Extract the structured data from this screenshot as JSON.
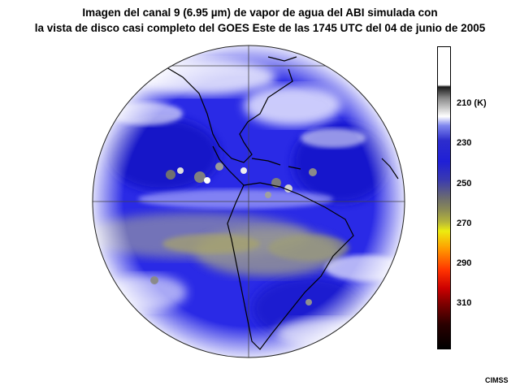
{
  "title": {
    "line1": "Imagen del canal 9 (6.95 µm) de vapor de agua del ABI simulada con",
    "line2": "la vista de disco casi completo del GOES Este de las 1745 UTC del 04 de junio de 2005"
  },
  "colorbar": {
    "ticks": [
      {
        "label": "210 (K)",
        "value": 210
      },
      {
        "label": "230",
        "value": 230
      },
      {
        "label": "250",
        "value": 250
      },
      {
        "label": "270",
        "value": 270
      },
      {
        "label": "290",
        "value": 290
      },
      {
        "label": "310",
        "value": 310
      }
    ]
  },
  "credit": "CIMSS",
  "colors": {
    "water_vapor_dark": "#1818d8",
    "water_vapor_mid": "#3c3cf0",
    "dry_yellow": "#b8b460",
    "moist_white": "#ffffff",
    "coastline": "#000000"
  }
}
